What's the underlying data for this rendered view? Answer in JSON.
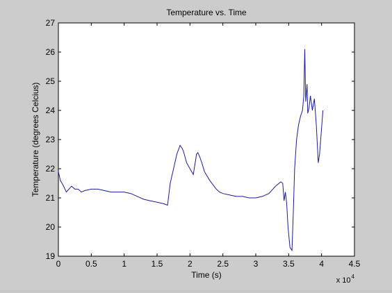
{
  "chart_data": {
    "type": "line",
    "title": "Temperature vs. Time",
    "xlabel": "Time (s)",
    "ylabel": "Temperature (degrees Celcius)",
    "x_exponent_label": "x 10",
    "x_exponent_power": "4",
    "xlim": [
      0,
      4.5
    ],
    "ylim": [
      19,
      27
    ],
    "x_ticks": [
      "0",
      "0.5",
      "1",
      "1.5",
      "2",
      "2.5",
      "3",
      "3.5",
      "4",
      "4.5"
    ],
    "y_ticks": [
      "19",
      "20",
      "21",
      "22",
      "23",
      "24",
      "25",
      "26",
      "27"
    ],
    "grid": false,
    "line_color": "#1a1aa0",
    "series": [
      {
        "x": [
          0.0,
          0.03,
          0.08,
          0.12,
          0.16,
          0.2,
          0.25,
          0.3,
          0.35,
          0.4,
          0.5,
          0.6,
          0.7,
          0.8,
          0.9,
          1.0,
          1.1,
          1.2,
          1.3,
          1.4,
          1.5,
          1.6,
          1.66,
          1.7,
          1.75,
          1.8,
          1.85,
          1.88,
          1.9,
          1.95,
          2.0,
          2.05,
          2.1,
          2.12,
          2.15,
          2.18,
          2.22,
          2.3,
          2.4,
          2.45,
          2.5,
          2.6,
          2.7,
          2.8,
          2.9,
          3.0,
          3.1,
          3.2,
          3.3,
          3.38,
          3.41,
          3.43,
          3.45,
          3.47,
          3.49,
          3.52,
          3.55,
          3.57,
          3.59,
          3.62,
          3.65,
          3.68,
          3.71,
          3.73,
          3.745,
          3.76,
          3.78,
          3.79,
          3.81,
          3.83,
          3.86,
          3.89,
          3.92,
          3.95,
          3.97,
          4.0,
          4.02
        ],
        "y": [
          21.9,
          21.6,
          21.4,
          21.2,
          21.3,
          21.4,
          21.3,
          21.3,
          21.2,
          21.25,
          21.3,
          21.3,
          21.25,
          21.2,
          21.2,
          21.2,
          21.15,
          21.05,
          20.95,
          20.9,
          20.85,
          20.8,
          20.75,
          21.5,
          22.0,
          22.5,
          22.8,
          22.7,
          22.6,
          22.2,
          22.0,
          21.8,
          22.5,
          22.55,
          22.4,
          22.2,
          21.9,
          21.6,
          21.3,
          21.2,
          21.15,
          21.1,
          21.05,
          21.05,
          21.0,
          21.0,
          21.05,
          21.15,
          21.4,
          21.55,
          21.5,
          20.9,
          21.2,
          20.8,
          20.0,
          19.3,
          19.2,
          20.5,
          22.0,
          23.0,
          23.5,
          23.8,
          24.0,
          24.5,
          26.1,
          24.3,
          24.9,
          23.9,
          24.1,
          24.5,
          24.0,
          24.4,
          23.5,
          22.2,
          22.5,
          23.4,
          24.0
        ]
      }
    ]
  }
}
